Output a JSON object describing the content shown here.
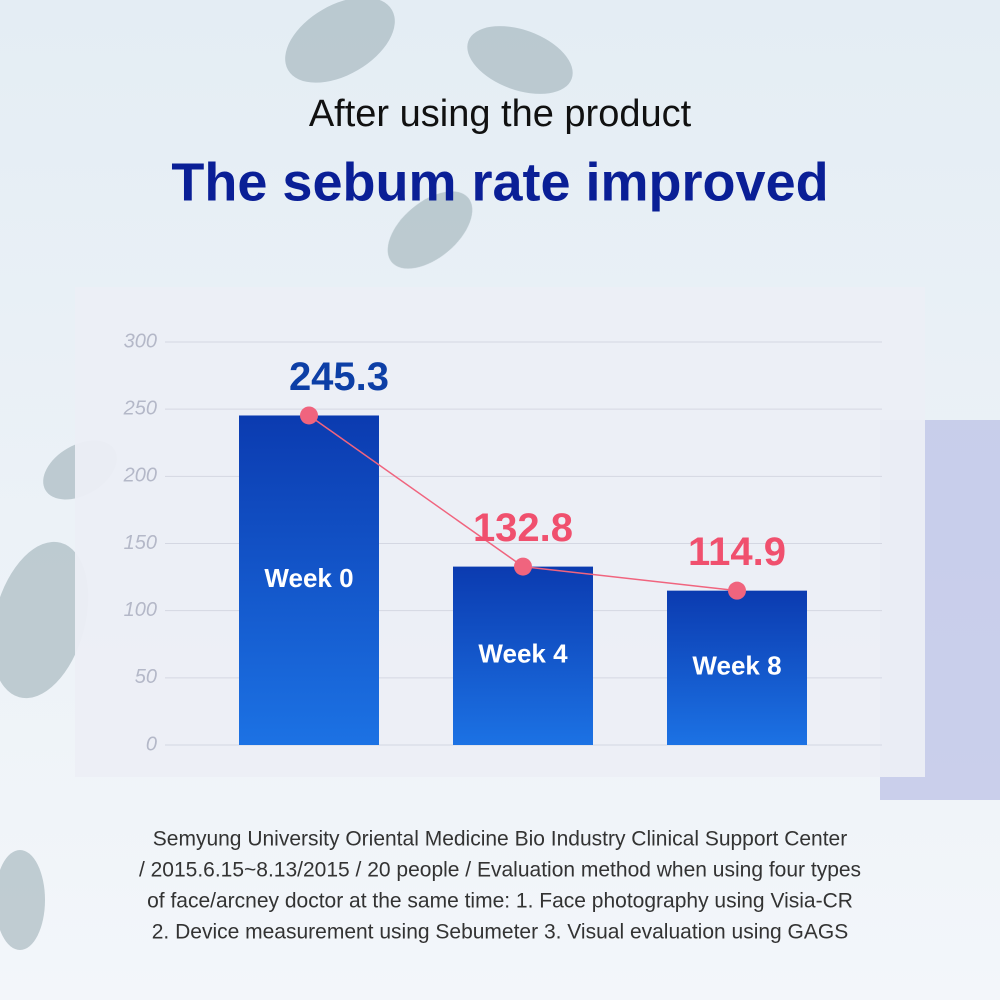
{
  "header": {
    "subtitle": "After using the product",
    "title": "The sebum rate improved"
  },
  "chart_data": {
    "type": "bar",
    "categories": [
      "Week 0",
      "Week 4",
      "Week 8"
    ],
    "values": [
      245.3,
      132.8,
      114.9
    ],
    "line": true,
    "color": "#0f4bc4",
    "line_color": "#f0647e",
    "label_colors": [
      "#0d3fa6",
      "#f0506e",
      "#f0506e"
    ],
    "ylim": [
      0,
      300
    ],
    "yticks": [
      0,
      50,
      100,
      150,
      200,
      250,
      300
    ],
    "grid": true
  },
  "footnote": [
    "Semyung University Oriental Medicine Bio Industry Clinical Support Center",
    "/ 2015.6.15~8.13/2015 / 20 people / Evaluation method when using four types",
    "of face/arcney doctor at the same time: 1. Face photography using Visia-CR",
    "2. Device measurement using Sebumeter 3. Visual evaluation using GAGS"
  ]
}
